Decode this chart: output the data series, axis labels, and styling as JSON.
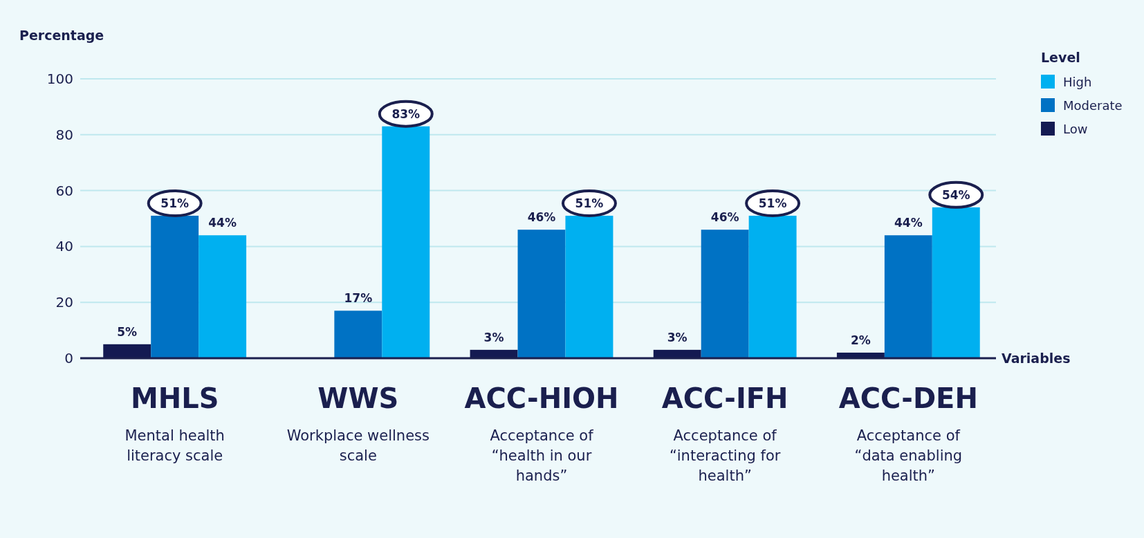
{
  "chart_data": {
    "type": "bar",
    "ylabel": "Percentage",
    "xlabel": "Variables",
    "legend_title": "Level",
    "categories": [
      "MHLS\nMental health\nliteracy scale",
      "WWS\nWorkplace wellness\nscale",
      "ACC-HIOH\nAcceptance of\n“health in our\nhands”",
      "ACC-IFH\nAcceptance of\n“interacting for\nhealth”",
      "ACC-DEH\nAcceptance of\n“data enabling\nhealth”"
    ],
    "series": [
      {
        "name": "Low",
        "color": "#141a52",
        "values": [
          5,
          null,
          3,
          3,
          2
        ],
        "value_labels": [
          "5%",
          null,
          "3%",
          "3%",
          "2%"
        ]
      },
      {
        "name": "Moderate",
        "color": "#0072c4",
        "values": [
          51,
          17,
          46,
          46,
          44
        ],
        "value_labels": [
          "51%",
          "17%",
          "46%",
          "46%",
          "44%"
        ]
      },
      {
        "name": "High",
        "color": "#00b0f0",
        "values": [
          44,
          83,
          51,
          51,
          54
        ],
        "value_labels": [
          "44%",
          "83%",
          "51%",
          "51%",
          "54%"
        ]
      }
    ],
    "ylim": [
      0,
      100
    ],
    "yticks": [
      0,
      20,
      40,
      60,
      80,
      100
    ],
    "grid": "y",
    "legend": "top right"
  }
}
